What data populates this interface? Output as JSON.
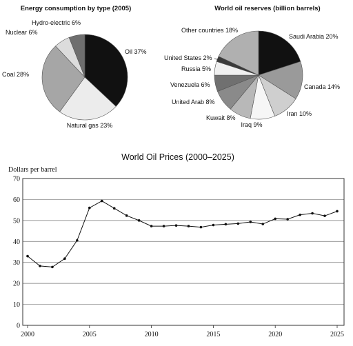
{
  "chart_data": [
    {
      "type": "pie",
      "title": "Energy consumption by type (2005)",
      "slices": [
        {
          "label": "Oil",
          "value": 37,
          "display": "Oil 37%",
          "color": "#111111"
        },
        {
          "label": "Natural gas",
          "value": 23,
          "display": "Natural gas 23%",
          "color": "#ececec"
        },
        {
          "label": "Coal",
          "value": 28,
          "display": "Coal 28%",
          "color": "#a6a6a6"
        },
        {
          "label": "Nuclear",
          "value": 6,
          "display": "Nuclear 6%",
          "color": "#dcdcdc"
        },
        {
          "label": "Hydro-electric",
          "value": 6,
          "display": "Hydro-electric 6%",
          "color": "#6e6e6e"
        }
      ]
    },
    {
      "type": "pie",
      "title": "World oil reserves (billion barrels)",
      "slices": [
        {
          "label": "Saudi Arabia",
          "value": 20,
          "display": "Saudi Arabia 20%",
          "color": "#111111"
        },
        {
          "label": "Canada",
          "value": 14,
          "display": "Canada 14%",
          "color": "#9a9a9a"
        },
        {
          "label": "Iran",
          "value": 10,
          "display": "Iran 10%",
          "color": "#cfcfcf"
        },
        {
          "label": "Iraq",
          "value": 9,
          "display": "Iraq 9%",
          "color": "#f6f6f6"
        },
        {
          "label": "Kuwait",
          "value": 8,
          "display": "Kuwait 8%",
          "color": "#b8b8b8"
        },
        {
          "label": "United Arab",
          "value": 8,
          "display": "United Arab 8%",
          "color": "#8a8a8a"
        },
        {
          "label": "Venezuela",
          "value": 6,
          "display": "Venezuela 6%",
          "color": "#707070"
        },
        {
          "label": "Russia",
          "value": 5,
          "display": "Russia 5%",
          "color": "#f0f0f0"
        },
        {
          "label": "United States",
          "value": 2,
          "display": "United States 2%",
          "color": "#3a3a3a"
        },
        {
          "label": "Other countries",
          "value": 18,
          "display": "Other countries 18%",
          "color": "#b0b0b0"
        }
      ]
    },
    {
      "type": "line",
      "title": "World Oil Prices (2000–2025)",
      "ylabel": "Dollars per barrel",
      "xlabel": "",
      "xlim": [
        2000,
        2025
      ],
      "ylim": [
        0,
        70
      ],
      "x_ticks": [
        2000,
        2005,
        2010,
        2015,
        2020,
        2025
      ],
      "y_ticks": [
        0,
        10,
        20,
        30,
        40,
        50,
        60,
        70
      ],
      "grid": true,
      "series": [
        {
          "x": [
            2000,
            2001,
            2002,
            2003,
            2004,
            2005,
            2006,
            2007,
            2008,
            2009,
            2010,
            2011,
            2012,
            2013,
            2014,
            2015,
            2016,
            2017,
            2018,
            2019,
            2020,
            2021,
            2022,
            2023,
            2024,
            2025
          ],
          "values": [
            33,
            28.3,
            27.8,
            31.8,
            40.5,
            56,
            59.3,
            55.8,
            52.3,
            50,
            47.3,
            47.3,
            47.6,
            47.3,
            46.8,
            47.8,
            48.2,
            48.5,
            49.3,
            48.3,
            50.8,
            50.6,
            52.7,
            53.4,
            52.2,
            54.4
          ],
          "color": "#111111"
        }
      ]
    }
  ]
}
